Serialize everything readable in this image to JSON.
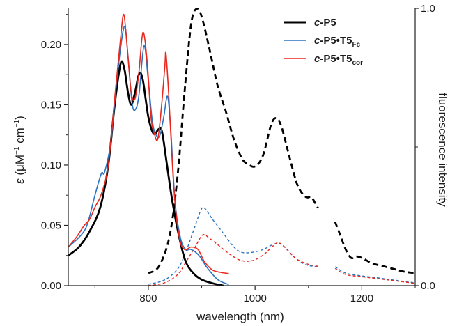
{
  "chart_data": {
    "type": "line",
    "xlabel": "wavelength (nm)",
    "ylabel_parts": {
      "symbol": "ε",
      "open": " (μM",
      "sup1": "−1",
      "mid": " cm",
      "sup2": "−1",
      "close": ")"
    },
    "y2label": "fluorescence intensity",
    "xlim": [
      650,
      1300
    ],
    "ylim": [
      0,
      0.23
    ],
    "y2lim": [
      0,
      1.0
    ],
    "x_ticks": [
      800,
      1000,
      1200
    ],
    "y_ticks": [
      "0.00",
      "0.05",
      "0.10",
      "0.15",
      "0.20"
    ],
    "y2_ticks": [
      "0.0",
      "1.0"
    ],
    "grid": false,
    "legend_position": "top-right",
    "legend": [
      {
        "name": "c-P5",
        "prefix": "c",
        "main": "-P5",
        "sub": "",
        "color": "#000000"
      },
      {
        "name": "c-P5•T5Fc",
        "prefix": "c",
        "main": "-P5•T5",
        "sub": "Fc",
        "color": "#2a74c2"
      },
      {
        "name": "c-P5•T5cor",
        "prefix": "c",
        "main": "-P5•T5",
        "sub": "cor",
        "color": "#e8281e"
      }
    ],
    "series": [
      {
        "name": "c-P5",
        "kind": "absorption",
        "color": "#000000",
        "points": [
          [
            650,
            0.025
          ],
          [
            670,
            0.032
          ],
          [
            690,
            0.045
          ],
          [
            710,
            0.065
          ],
          [
            725,
            0.1
          ],
          [
            737,
            0.15
          ],
          [
            748,
            0.184
          ],
          [
            755,
            0.18
          ],
          [
            762,
            0.16
          ],
          [
            768,
            0.15
          ],
          [
            775,
            0.16
          ],
          [
            783,
            0.176
          ],
          [
            790,
            0.17
          ],
          [
            800,
            0.14
          ],
          [
            810,
            0.126
          ],
          [
            820,
            0.13
          ],
          [
            826,
            0.127
          ],
          [
            835,
            0.1
          ],
          [
            845,
            0.07
          ],
          [
            858,
            0.04
          ],
          [
            870,
            0.02
          ],
          [
            885,
            0.01
          ],
          [
            900,
            0.005
          ],
          [
            920,
            0.002
          ],
          [
            940,
            0.0
          ]
        ]
      },
      {
        "name": "c-P5•T5Fc",
        "kind": "absorption",
        "color": "#2a74c2",
        "points": [
          [
            650,
            0.032
          ],
          [
            670,
            0.04
          ],
          [
            685,
            0.05
          ],
          [
            700,
            0.075
          ],
          [
            712,
            0.093
          ],
          [
            718,
            0.094
          ],
          [
            730,
            0.12
          ],
          [
            742,
            0.175
          ],
          [
            755,
            0.215
          ],
          [
            762,
            0.19
          ],
          [
            770,
            0.15
          ],
          [
            777,
            0.147
          ],
          [
            783,
            0.16
          ],
          [
            792,
            0.199
          ],
          [
            800,
            0.17
          ],
          [
            808,
            0.135
          ],
          [
            816,
            0.124
          ],
          [
            822,
            0.125
          ],
          [
            829,
            0.14
          ],
          [
            836,
            0.157
          ],
          [
            842,
            0.13
          ],
          [
            850,
            0.07
          ],
          [
            860,
            0.04
          ],
          [
            870,
            0.03
          ],
          [
            880,
            0.03
          ],
          [
            895,
            0.025
          ],
          [
            910,
            0.015
          ],
          [
            930,
            0.005
          ],
          [
            950,
            0.001
          ]
        ]
      },
      {
        "name": "c-P5•T5cor",
        "kind": "absorption",
        "color": "#e8281e",
        "points": [
          [
            650,
            0.032
          ],
          [
            665,
            0.04
          ],
          [
            680,
            0.05
          ],
          [
            690,
            0.055
          ],
          [
            700,
            0.065
          ],
          [
            712,
            0.076
          ],
          [
            725,
            0.1
          ],
          [
            738,
            0.16
          ],
          [
            748,
            0.205
          ],
          [
            754,
            0.225
          ],
          [
            760,
            0.2
          ],
          [
            768,
            0.16
          ],
          [
            775,
            0.155
          ],
          [
            782,
            0.175
          ],
          [
            790,
            0.21
          ],
          [
            798,
            0.185
          ],
          [
            805,
            0.14
          ],
          [
            812,
            0.125
          ],
          [
            818,
            0.122
          ],
          [
            825,
            0.15
          ],
          [
            831,
            0.182
          ],
          [
            833,
            0.193
          ],
          [
            838,
            0.16
          ],
          [
            848,
            0.08
          ],
          [
            858,
            0.04
          ],
          [
            868,
            0.03
          ],
          [
            880,
            0.032
          ],
          [
            893,
            0.03
          ],
          [
            905,
            0.02
          ],
          [
            920,
            0.013
          ],
          [
            935,
            0.011
          ],
          [
            950,
            0.01
          ]
        ]
      },
      {
        "name": "c-P5 emission",
        "kind": "fluorescence",
        "color": "#000000",
        "segments": [
          [
            [
              800,
              0.045
            ],
            [
              820,
              0.07
            ],
            [
              840,
              0.18
            ],
            [
              855,
              0.4
            ],
            [
              868,
              0.7
            ],
            [
              880,
              0.94
            ],
            [
              890,
              0.998
            ],
            [
              900,
              0.97
            ],
            [
              915,
              0.85
            ],
            [
              930,
              0.72
            ],
            [
              945,
              0.63
            ],
            [
              960,
              0.53
            ],
            [
              975,
              0.46
            ],
            [
              985,
              0.44
            ],
            [
              1000,
              0.43
            ],
            [
              1015,
              0.47
            ],
            [
              1030,
              0.58
            ],
            [
              1040,
              0.604
            ],
            [
              1050,
              0.57
            ],
            [
              1065,
              0.46
            ],
            [
              1080,
              0.36
            ],
            [
              1095,
              0.32
            ],
            [
              1105,
              0.32
            ],
            [
              1112,
              0.3
            ],
            [
              1118,
              0.28
            ]
          ],
          [
            [
              1150,
              0.23
            ],
            [
              1160,
              0.18
            ],
            [
              1170,
              0.13
            ],
            [
              1180,
              0.1
            ],
            [
              1190,
              0.105
            ],
            [
              1200,
              0.1
            ],
            [
              1220,
              0.08
            ],
            [
              1240,
              0.07
            ],
            [
              1260,
              0.06
            ],
            [
              1280,
              0.05
            ],
            [
              1300,
              0.045
            ]
          ]
        ]
      },
      {
        "name": "c-P5•T5Fc emission",
        "kind": "fluorescence",
        "color": "#2a74c2",
        "segments": [
          [
            [
              800,
              0.005
            ],
            [
              830,
              0.02
            ],
            [
              855,
              0.06
            ],
            [
              870,
              0.12
            ],
            [
              885,
              0.2
            ],
            [
              898,
              0.27
            ],
            [
              905,
              0.28
            ],
            [
              920,
              0.24
            ],
            [
              940,
              0.19
            ],
            [
              960,
              0.14
            ],
            [
              975,
              0.12
            ],
            [
              995,
              0.12
            ],
            [
              1015,
              0.13
            ],
            [
              1030,
              0.145
            ],
            [
              1043,
              0.152
            ],
            [
              1055,
              0.14
            ],
            [
              1075,
              0.1
            ],
            [
              1095,
              0.075
            ],
            [
              1110,
              0.07
            ],
            [
              1118,
              0.068
            ]
          ],
          [
            [
              1150,
              0.068
            ],
            [
              1170,
              0.045
            ],
            [
              1200,
              0.035
            ],
            [
              1230,
              0.028
            ],
            [
              1260,
              0.02
            ],
            [
              1300,
              0.01
            ]
          ]
        ]
      },
      {
        "name": "c-P5•T5cor emission",
        "kind": "fluorescence",
        "color": "#e8281e",
        "segments": [
          [
            [
              800,
              0.0
            ],
            [
              830,
              0.01
            ],
            [
              855,
              0.04
            ],
            [
              872,
              0.09
            ],
            [
              888,
              0.14
            ],
            [
              902,
              0.183
            ],
            [
              915,
              0.17
            ],
            [
              935,
              0.14
            ],
            [
              955,
              0.11
            ],
            [
              975,
              0.09
            ],
            [
              995,
              0.09
            ],
            [
              1015,
              0.11
            ],
            [
              1032,
              0.14
            ],
            [
              1043,
              0.155
            ],
            [
              1055,
              0.14
            ],
            [
              1075,
              0.1
            ],
            [
              1095,
              0.08
            ],
            [
              1110,
              0.072
            ],
            [
              1118,
              0.07
            ]
          ],
          [
            [
              1150,
              0.062
            ],
            [
              1170,
              0.04
            ],
            [
              1200,
              0.032
            ],
            [
              1230,
              0.025
            ],
            [
              1260,
              0.018
            ],
            [
              1300,
              0.008
            ]
          ]
        ]
      }
    ]
  }
}
